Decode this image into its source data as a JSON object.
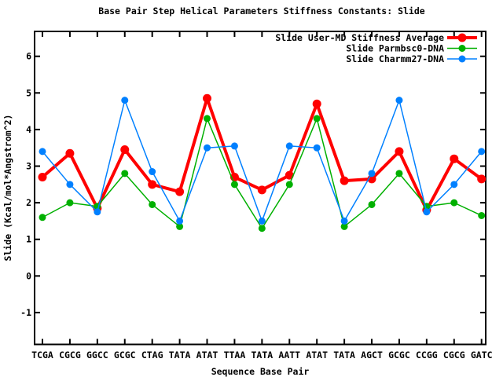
{
  "title": "Base Pair Step Helical Parameters Stiffness Constants: Slide",
  "chart_data": {
    "type": "line",
    "title": "Base Pair Step Helical Parameters Stiffness Constants: Slide",
    "xlabel": "Sequence Base Pair",
    "ylabel": "Slide (Kcal/mol*Angstrom^2)",
    "categories": [
      "TCGA",
      "CGCG",
      "GGCC",
      "GCGC",
      "CTAG",
      "TATA",
      "ATAT",
      "TTAA",
      "TATA",
      "AATT",
      "ATAT",
      "TATA",
      "AGCT",
      "GCGC",
      "CCGG",
      "CGCG",
      "GATC"
    ],
    "yticks": [
      -1,
      0,
      1,
      2,
      3,
      4,
      5,
      6
    ],
    "ylim": [
      -1.87,
      6.68
    ],
    "grid": false,
    "legend_position": "top-right-inside",
    "axis_color": "#000000",
    "background_color": "#ffffff",
    "series": [
      {
        "name": "Slide User-MD Stiffness Average",
        "color": "#ff0000",
        "line_width": 4,
        "marker": "filled-circle",
        "marker_radius": 5.5,
        "values": [
          2.7,
          3.35,
          1.85,
          3.45,
          2.5,
          2.3,
          4.85,
          2.7,
          2.35,
          2.75,
          4.7,
          2.6,
          2.65,
          3.4,
          1.8,
          3.2,
          2.65
        ]
      },
      {
        "name": "Slide Parmbsc0-DNA",
        "color": "#00b000",
        "line_width": 1.5,
        "marker": "filled-circle",
        "marker_radius": 4.5,
        "values": [
          1.6,
          2.0,
          1.9,
          2.8,
          1.95,
          1.35,
          4.3,
          2.5,
          1.3,
          2.5,
          4.3,
          1.35,
          1.95,
          2.8,
          1.9,
          2.0,
          1.65
        ]
      },
      {
        "name": "Slide Charmm27-DNA",
        "color": "#0080ff",
        "line_width": 1.5,
        "marker": "filled-circle",
        "marker_radius": 4.5,
        "values": [
          3.4,
          2.5,
          1.75,
          4.8,
          2.85,
          1.5,
          3.5,
          3.55,
          1.5,
          3.55,
          3.5,
          1.5,
          2.8,
          4.8,
          1.75,
          2.5,
          3.4
        ]
      }
    ]
  }
}
